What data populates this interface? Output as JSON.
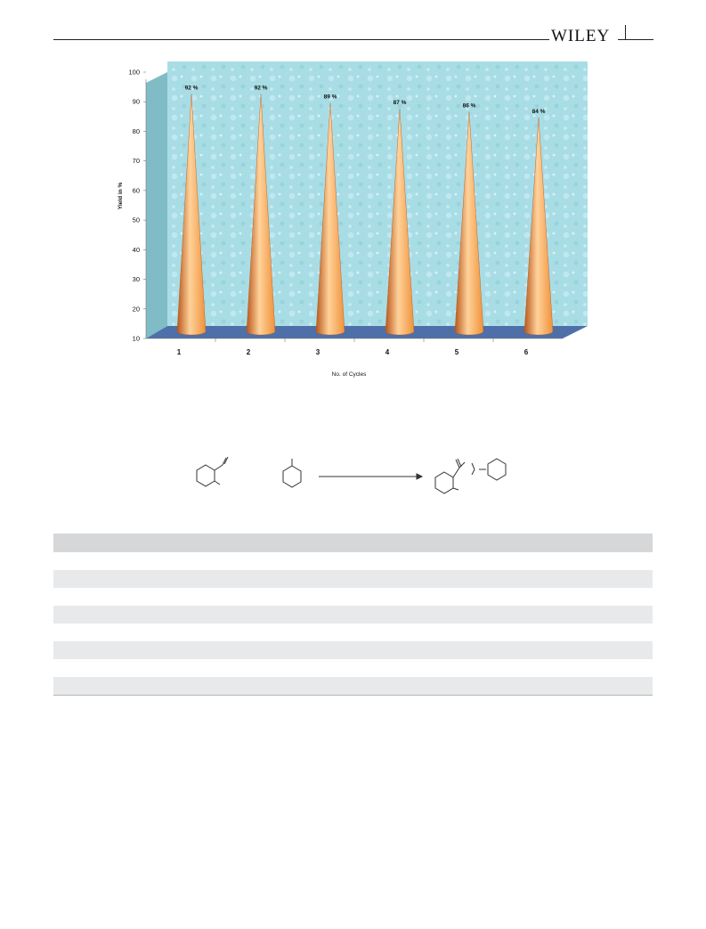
{
  "header": {
    "logo_text": "WILEY"
  },
  "chart_data": {
    "type": "bar",
    "bar_style": "3d-cone",
    "categories": [
      "1",
      "2",
      "3",
      "4",
      "5",
      "6"
    ],
    "values": [
      92,
      92,
      89,
      87,
      86,
      84
    ],
    "data_labels": [
      "92 %",
      "92 %",
      "89 %",
      "87 %",
      "86 %",
      "84 %"
    ],
    "title": "",
    "xlabel": "No. of Cycles",
    "ylabel": "Yield in %",
    "ylim": [
      10,
      100
    ],
    "yticks": [
      10,
      20,
      30,
      40,
      50,
      60,
      70,
      80,
      90,
      100
    ],
    "grid": false,
    "legend": "none",
    "colors": {
      "cone": "#f0913a",
      "cone_highlight": "#ffd29a",
      "cone_shadow": "#b8561a",
      "wall": "#a9dde6",
      "side_wall": "#7fbcc6",
      "floor": "#4f6fa8"
    }
  },
  "table": {
    "shaded_rows": [
      1,
      3,
      5,
      7
    ],
    "row_count": 8
  }
}
